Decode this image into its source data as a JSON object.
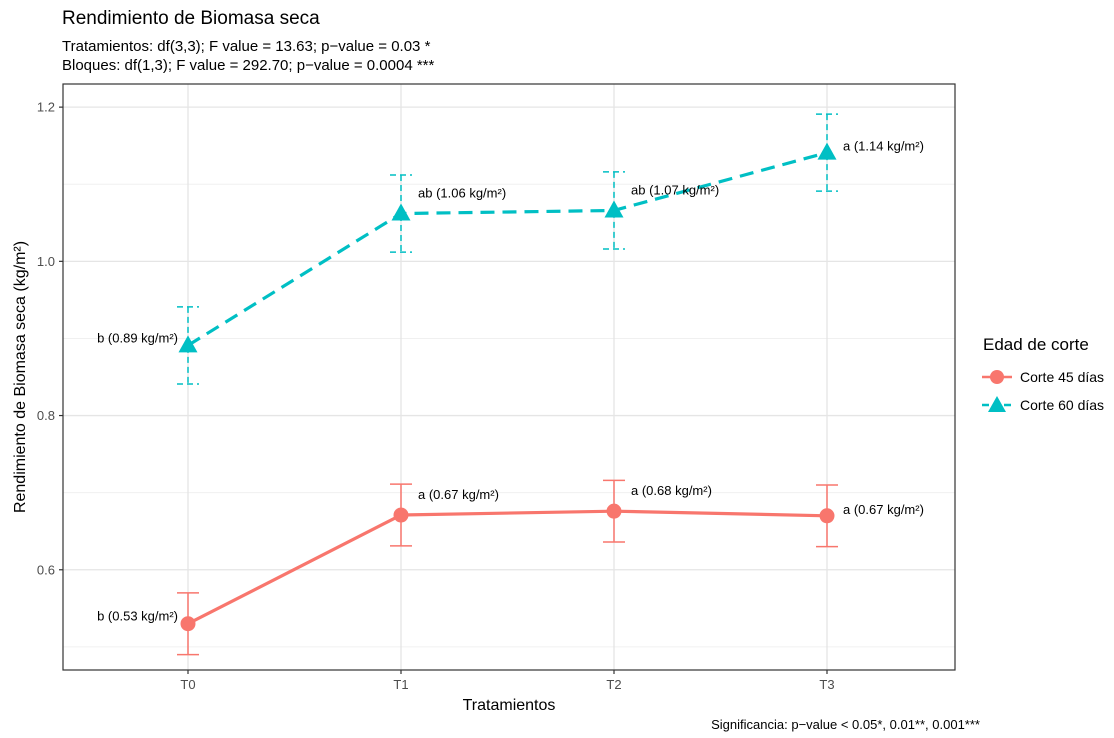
{
  "chart_data": {
    "type": "line",
    "title": "Rendimiento de Biomasa seca",
    "subtitle_lines": [
      "Tratamientos: df(3,3); F value = 13.63; p−value = 0.03 *",
      "Bloques: df(1,3); F value = 292.70; p−value = 0.0004 ***"
    ],
    "xlabel": "Tratamientos",
    "ylabel": "Rendimiento de Biomasa seca (kg/m²)",
    "caption": "Significancia: p−value < 0.05*, 0.01**, 0.001***",
    "categories": [
      "T0",
      "T1",
      "T2",
      "T3"
    ],
    "ylim": [
      0.47,
      1.23
    ],
    "yticks": [
      0.6,
      0.8,
      1.0,
      1.2
    ],
    "ytick_labels": [
      "0.6",
      "0.8",
      "1.0",
      "1.2"
    ],
    "grid": true,
    "legend": {
      "title": "Edad de corte",
      "placement": "right"
    },
    "series": [
      {
        "name": "Corte 45 días",
        "color": "#F8766D",
        "marker": "circle",
        "linestyle": "solid",
        "values": [
          0.53,
          0.671,
          0.676,
          0.67
        ],
        "err_low": [
          0.49,
          0.631,
          0.636,
          0.63
        ],
        "err_high": [
          0.57,
          0.711,
          0.716,
          0.71
        ],
        "labels": [
          "b (0.53 kg/m²)",
          "a (0.67 kg/m²)",
          "a (0.68 kg/m²)",
          "a (0.67 kg/m²)"
        ]
      },
      {
        "name": "Corte 60 días",
        "color": "#00BFC4",
        "marker": "triangle",
        "linestyle": "dashed",
        "values": [
          0.891,
          1.062,
          1.066,
          1.141
        ],
        "err_low": [
          0.841,
          1.012,
          1.016,
          1.091
        ],
        "err_high": [
          0.941,
          1.112,
          1.116,
          1.191
        ],
        "labels": [
          "b (0.89 kg/m²)",
          "ab (1.06 kg/m²)",
          "ab (1.07 kg/m²)",
          "a (1.14 kg/m²)"
        ]
      }
    ]
  }
}
